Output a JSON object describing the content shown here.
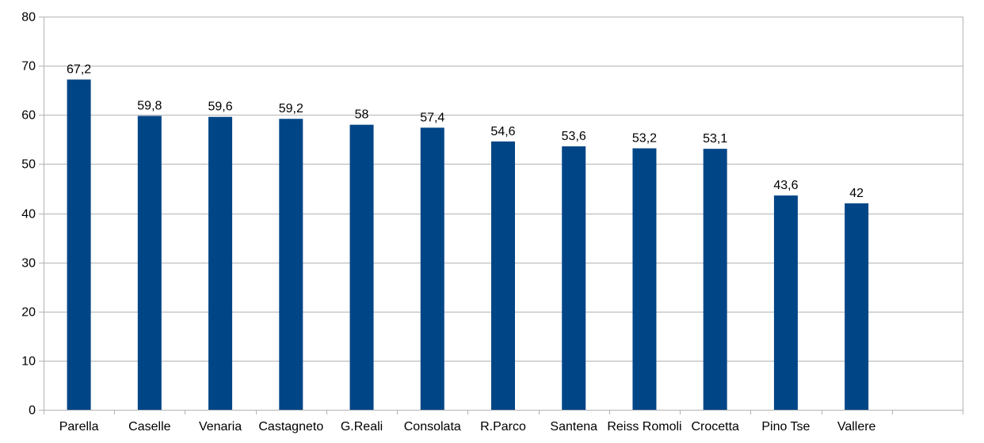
{
  "chart_data": {
    "type": "bar",
    "title": "",
    "xlabel": "",
    "ylabel": "",
    "categories": [
      "Parella",
      "Caselle",
      "Venaria",
      "Castagneto",
      "G.Reali",
      "Consolata",
      "R.Parco",
      "Santena",
      "Reiss Romoli",
      "Crocetta",
      "Pino Tse",
      "Vallere",
      ""
    ],
    "values": [
      67.2,
      59.8,
      59.6,
      59.2,
      58,
      57.4,
      54.6,
      53.6,
      53.2,
      53.1,
      43.6,
      42,
      null
    ],
    "data_labels": [
      "67,2",
      "59,8",
      "59,6",
      "59,2",
      "58",
      "57,4",
      "54,6",
      "53,6",
      "53,2",
      "53,1",
      "43,6",
      "42",
      ""
    ],
    "ylim": [
      0,
      80
    ],
    "yticks": [
      0,
      10,
      20,
      30,
      40,
      50,
      60,
      70,
      80
    ],
    "grid": true,
    "legend": "none",
    "bar_color": "#004586",
    "grid_color": "#b3b3b3"
  }
}
